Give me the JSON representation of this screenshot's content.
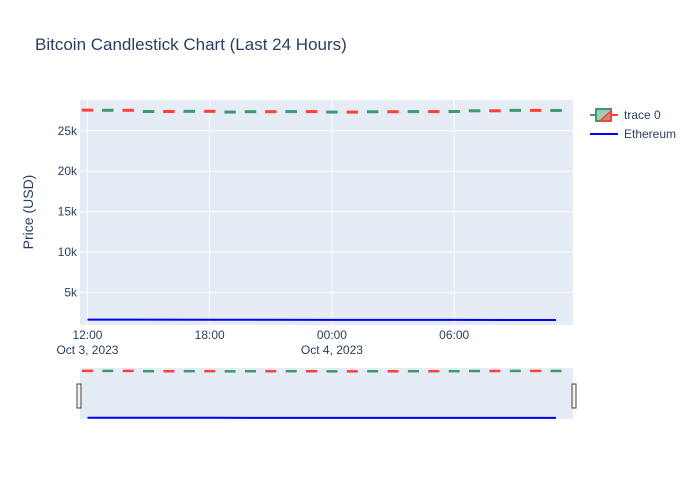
{
  "chart_data": {
    "type": "candlestick",
    "title": "Bitcoin Candlestick Chart (Last 24 Hours)",
    "xlabel": "",
    "ylabel": "Price (USD)",
    "x_range": [
      "2023-10-03T11:38:00",
      "2023-10-04T11:50:00"
    ],
    "y_range": [
      1000,
      28800
    ],
    "y_ticks": [
      5000,
      10000,
      15000,
      20000,
      25000
    ],
    "y_tick_labels": [
      "5k",
      "10k",
      "15k",
      "20k",
      "25k"
    ],
    "x_ticks": [
      "2023-10-03T12:00:00",
      "2023-10-03T18:00:00",
      "2023-10-04T00:00:00",
      "2023-10-04T06:00:00"
    ],
    "x_tick_labels": [
      {
        "time": "12:00",
        "date": "Oct 3, 2023"
      },
      {
        "time": "18:00",
        "date": ""
      },
      {
        "time": "00:00",
        "date": "Oct 4, 2023"
      },
      {
        "time": "06:00",
        "date": ""
      }
    ],
    "grid": true,
    "legend_position": "top-right",
    "series": [
      {
        "name": "trace 0",
        "type": "candlestick",
        "increasing_color": "#3D9970",
        "decreasing_color": "#FF4136",
        "candles": [
          {
            "t": "2023-10-03T12:00:00",
            "open": 27640,
            "high": 27660,
            "low": 27530,
            "close": 27550
          },
          {
            "t": "2023-10-03T13:00:00",
            "open": 27550,
            "high": 27640,
            "low": 27520,
            "close": 27620
          },
          {
            "t": "2023-10-03T14:00:00",
            "open": 27620,
            "high": 27630,
            "low": 27450,
            "close": 27460
          },
          {
            "t": "2023-10-03T15:00:00",
            "open": 27460,
            "high": 27500,
            "low": 27400,
            "close": 27470
          },
          {
            "t": "2023-10-03T16:00:00",
            "open": 27470,
            "high": 27490,
            "low": 27390,
            "close": 27420
          },
          {
            "t": "2023-10-03T17:00:00",
            "open": 27420,
            "high": 27510,
            "low": 27390,
            "close": 27490
          },
          {
            "t": "2023-10-03T18:00:00",
            "open": 27490,
            "high": 27500,
            "low": 27330,
            "close": 27340
          },
          {
            "t": "2023-10-03T19:00:00",
            "open": 27340,
            "high": 27420,
            "low": 27310,
            "close": 27400
          },
          {
            "t": "2023-10-03T20:00:00",
            "open": 27400,
            "high": 27480,
            "low": 27380,
            "close": 27450
          },
          {
            "t": "2023-10-03T21:00:00",
            "open": 27450,
            "high": 27470,
            "low": 27390,
            "close": 27410
          },
          {
            "t": "2023-10-03T22:00:00",
            "open": 27410,
            "high": 27480,
            "low": 27380,
            "close": 27460
          },
          {
            "t": "2023-10-03T23:00:00",
            "open": 27460,
            "high": 27470,
            "low": 27340,
            "close": 27350
          },
          {
            "t": "2023-10-04T00:00:00",
            "open": 27350,
            "high": 27430,
            "low": 27320,
            "close": 27400
          },
          {
            "t": "2023-10-04T01:00:00",
            "open": 27400,
            "high": 27420,
            "low": 27360,
            "close": 27380
          },
          {
            "t": "2023-10-04T02:00:00",
            "open": 27380,
            "high": 27460,
            "low": 27360,
            "close": 27440
          },
          {
            "t": "2023-10-04T03:00:00",
            "open": 27440,
            "high": 27460,
            "low": 27400,
            "close": 27420
          },
          {
            "t": "2023-10-04T04:00:00",
            "open": 27420,
            "high": 27480,
            "low": 27400,
            "close": 27460
          },
          {
            "t": "2023-10-04T05:00:00",
            "open": 27460,
            "high": 27470,
            "low": 27380,
            "close": 27400
          },
          {
            "t": "2023-10-04T06:00:00",
            "open": 27400,
            "high": 27490,
            "low": 27390,
            "close": 27470
          },
          {
            "t": "2023-10-04T07:00:00",
            "open": 27470,
            "high": 27580,
            "low": 27450,
            "close": 27560
          },
          {
            "t": "2023-10-04T08:00:00",
            "open": 27560,
            "high": 27570,
            "low": 27480,
            "close": 27500
          },
          {
            "t": "2023-10-04T09:00:00",
            "open": 27500,
            "high": 27630,
            "low": 27490,
            "close": 27610
          },
          {
            "t": "2023-10-04T10:00:00",
            "open": 27610,
            "high": 27620,
            "low": 27530,
            "close": 27550
          },
          {
            "t": "2023-10-04T11:00:00",
            "open": 27550,
            "high": 27640,
            "low": 27530,
            "close": 27600
          }
        ]
      },
      {
        "name": "Ethereum",
        "type": "line",
        "color": "#0000FF",
        "points": [
          {
            "t": "2023-10-03T12:00:00",
            "y": 1660
          },
          {
            "t": "2023-10-03T18:00:00",
            "y": 1650
          },
          {
            "t": "2023-10-04T00:00:00",
            "y": 1640
          },
          {
            "t": "2023-10-04T06:00:00",
            "y": 1630
          },
          {
            "t": "2023-10-04T11:00:00",
            "y": 1620
          }
        ]
      }
    ],
    "rangeslider": true
  }
}
